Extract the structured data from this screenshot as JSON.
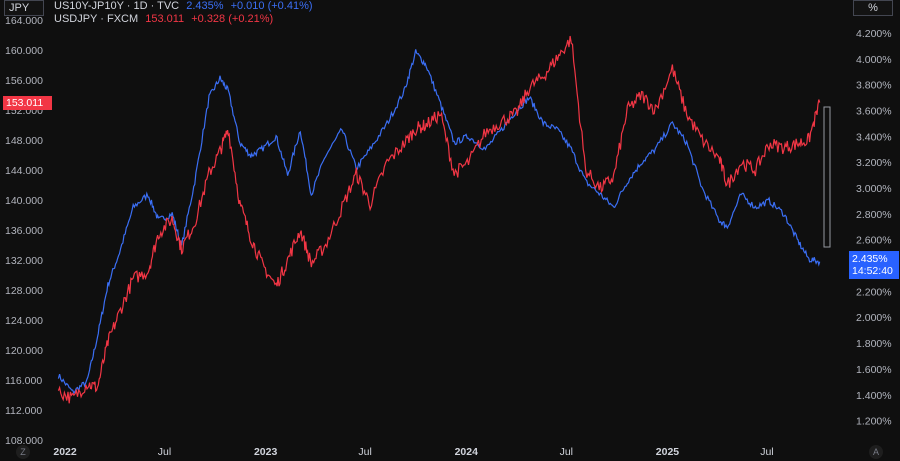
{
  "header": {
    "left_unit": "JPY",
    "right_unit": "%",
    "series1": {
      "name": "US10Y-JP10Y · 1D · TVC",
      "value": "2.435%",
      "change": "+0.010 (+0.41%)",
      "color": "#3b6ff5"
    },
    "series2": {
      "name": "USDJPY · FXCM",
      "value": "153.011",
      "change": "+0.328 (+0.21%)",
      "color": "#f23645"
    }
  },
  "tags": {
    "left_price": "153.011",
    "right_value": "2.435%",
    "right_time": "14:52:40"
  },
  "buttons": {
    "zoom": "Z",
    "auto": "A"
  },
  "chart_data": {
    "type": "line",
    "x_ticks": [
      "2022",
      "Jul",
      "2023",
      "Jul",
      "2024",
      "Jul",
      "2025",
      "Jul"
    ],
    "left_axis": {
      "unit": "JPY",
      "ticks": [
        "108.000",
        "112.000",
        "116.000",
        "120.000",
        "124.000",
        "128.000",
        "132.000",
        "136.000",
        "140.000",
        "144.000",
        "148.000",
        "152.000",
        "156.000",
        "160.000",
        "164.000"
      ],
      "ylim": [
        108,
        164
      ]
    },
    "right_axis": {
      "unit": "%",
      "ticks": [
        "1.200%",
        "1.400%",
        "1.600%",
        "1.800%",
        "2.000%",
        "2.200%",
        "2.400%",
        "2.600%",
        "2.800%",
        "3.000%",
        "3.200%",
        "3.400%",
        "3.600%",
        "3.800%",
        "4.000%",
        "4.200%"
      ],
      "ylim": [
        1.05,
        4.3
      ]
    },
    "series": [
      {
        "name": "US10Y-JP10Y",
        "axis": "right",
        "color": "#3b6ff5",
        "x": [
          "2021-12-20",
          "2022-01-15",
          "2022-02-10",
          "2022-03-01",
          "2022-03-20",
          "2022-04-10",
          "2022-05-05",
          "2022-06-01",
          "2022-06-20",
          "2022-07-15",
          "2022-08-01",
          "2022-08-25",
          "2022-09-20",
          "2022-10-10",
          "2022-10-25",
          "2022-11-15",
          "2022-12-05",
          "2022-12-25",
          "2023-01-20",
          "2023-02-10",
          "2023-03-05",
          "2023-03-25",
          "2023-04-20",
          "2023-05-20",
          "2023-06-15",
          "2023-07-10",
          "2023-08-10",
          "2023-09-10",
          "2023-10-01",
          "2023-10-20",
          "2023-11-15",
          "2023-12-10",
          "2024-01-05",
          "2024-02-05",
          "2024-03-05",
          "2024-04-01",
          "2024-04-25",
          "2024-05-20",
          "2024-06-15",
          "2024-07-10",
          "2024-08-05",
          "2024-09-01",
          "2024-09-25",
          "2024-10-20",
          "2024-11-15",
          "2024-12-10",
          "2025-01-10",
          "2025-02-05",
          "2025-03-05",
          "2025-04-05",
          "2025-04-20",
          "2025-05-15",
          "2025-06-10",
          "2025-07-05",
          "2025-08-01",
          "2025-08-25",
          "2025-09-15",
          "2025-10-05"
        ],
        "y": [
          1.55,
          1.42,
          1.5,
          1.85,
          2.25,
          2.5,
          2.85,
          2.95,
          2.75,
          2.8,
          2.55,
          3.05,
          3.7,
          3.85,
          3.75,
          3.35,
          3.25,
          3.3,
          3.4,
          3.1,
          3.45,
          2.95,
          3.25,
          3.45,
          3.15,
          3.3,
          3.5,
          3.75,
          4.05,
          3.95,
          3.65,
          3.35,
          3.4,
          3.3,
          3.45,
          3.6,
          3.7,
          3.5,
          3.45,
          3.3,
          3.05,
          2.95,
          2.85,
          3.05,
          3.2,
          3.3,
          3.5,
          3.35,
          3.0,
          2.75,
          2.7,
          2.95,
          2.85,
          2.9,
          2.8,
          2.6,
          2.45,
          2.43
        ]
      },
      {
        "name": "USDJPY",
        "axis": "left",
        "color": "#f23645",
        "x": [
          "2021-12-20",
          "2022-01-15",
          "2022-02-10",
          "2022-03-01",
          "2022-03-20",
          "2022-04-10",
          "2022-05-05",
          "2022-06-01",
          "2022-06-20",
          "2022-07-15",
          "2022-08-01",
          "2022-08-25",
          "2022-09-20",
          "2022-10-10",
          "2022-10-25",
          "2022-11-15",
          "2022-12-05",
          "2022-12-25",
          "2023-01-20",
          "2023-02-10",
          "2023-03-05",
          "2023-03-25",
          "2023-04-20",
          "2023-05-20",
          "2023-06-15",
          "2023-07-10",
          "2023-08-10",
          "2023-09-10",
          "2023-10-01",
          "2023-10-20",
          "2023-11-15",
          "2023-12-10",
          "2024-01-05",
          "2024-02-05",
          "2024-03-05",
          "2024-04-01",
          "2024-04-25",
          "2024-05-20",
          "2024-06-15",
          "2024-07-10",
          "2024-08-05",
          "2024-09-01",
          "2024-09-25",
          "2024-10-20",
          "2024-11-15",
          "2024-12-10",
          "2025-01-10",
          "2025-02-05",
          "2025-03-05",
          "2025-04-05",
          "2025-04-20",
          "2025-05-15",
          "2025-06-10",
          "2025-07-05",
          "2025-08-01",
          "2025-08-25",
          "2025-09-15",
          "2025-10-05"
        ],
        "y": [
          114.5,
          113.5,
          115.5,
          115.0,
          121.0,
          125.0,
          129.5,
          130.5,
          135.5,
          137.5,
          133.5,
          137.0,
          143.5,
          146.5,
          149.5,
          139.5,
          135.0,
          131.5,
          128.5,
          132.0,
          136.0,
          131.5,
          134.0,
          139.0,
          143.5,
          139.5,
          145.0,
          147.5,
          149.5,
          150.0,
          151.5,
          143.5,
          145.0,
          149.0,
          150.5,
          151.5,
          155.0,
          156.5,
          159.0,
          161.5,
          144.0,
          141.5,
          143.0,
          152.0,
          154.0,
          152.0,
          157.5,
          151.5,
          148.0,
          145.5,
          142.0,
          145.0,
          144.0,
          147.5,
          147.0,
          147.5,
          148.0,
          153.0
        ]
      }
    ],
    "grid": false
  }
}
